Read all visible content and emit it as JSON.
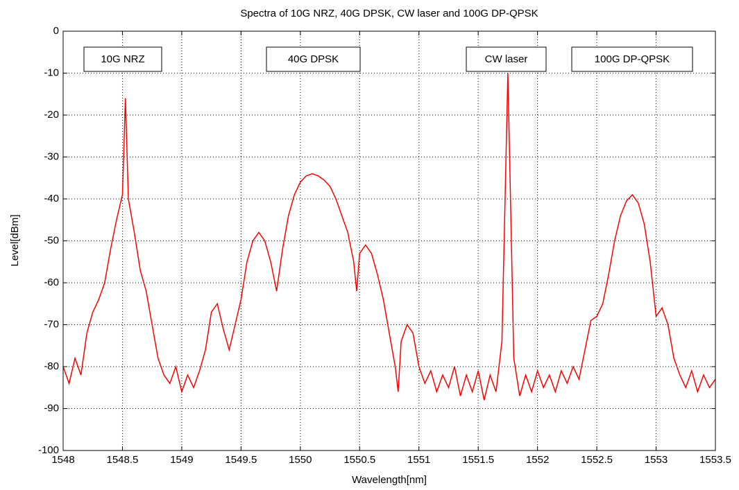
{
  "chart_data": {
    "type": "line",
    "title": "Spectra of 10G NRZ, 40G DPSK, CW laser and 100G DP-QPSK",
    "xlabel": "Wavelength[nm]",
    "ylabel": "Level[dBm]",
    "annotations": [
      "10G NRZ",
      "40G DPSK",
      "CW laser",
      "100G DP-QPSK"
    ],
    "color": "#ff0000",
    "grid": true,
    "xlim": [
      1548,
      1553.5
    ],
    "xticks": [
      1548,
      1548.5,
      1549,
      1549.5,
      1550,
      1550.5,
      1551,
      1551.5,
      1552,
      1552.5,
      1553,
      1553.5
    ],
    "ylim": [
      -100,
      0
    ],
    "yticks": [
      0,
      -10,
      -20,
      -30,
      -40,
      -50,
      -60,
      -70,
      -80,
      -90,
      -100
    ],
    "x": [
      1548,
      1548.05,
      1548.1,
      1548.15,
      1548.2,
      1548.25,
      1548.3,
      1548.35,
      1548.4,
      1548.45,
      1548.5,
      1548.525,
      1548.55,
      1548.6,
      1548.65,
      1548.7,
      1548.75,
      1548.8,
      1548.85,
      1548.9,
      1548.95,
      1549,
      1549.05,
      1549.1,
      1549.15,
      1549.2,
      1549.25,
      1549.3,
      1549.35,
      1549.4,
      1549.45,
      1549.5,
      1549.55,
      1549.6,
      1549.65,
      1549.7,
      1549.75,
      1549.8,
      1549.85,
      1549.9,
      1549.95,
      1550,
      1550.05,
      1550.1,
      1550.15,
      1550.2,
      1550.25,
      1550.3,
      1550.35,
      1550.4,
      1550.45,
      1550.475,
      1550.5,
      1550.55,
      1550.6,
      1550.65,
      1550.7,
      1550.75,
      1550.8,
      1550.825,
      1550.85,
      1550.9,
      1550.95,
      1551,
      1551.05,
      1551.1,
      1551.15,
      1551.2,
      1551.25,
      1551.3,
      1551.35,
      1551.4,
      1551.45,
      1551.5,
      1551.55,
      1551.6,
      1551.65,
      1551.7,
      1551.75,
      1551.8,
      1551.85,
      1551.9,
      1551.95,
      1552,
      1552.05,
      1552.1,
      1552.15,
      1552.2,
      1552.25,
      1552.3,
      1552.35,
      1552.4,
      1552.45,
      1552.5,
      1552.55,
      1552.6,
      1552.65,
      1552.7,
      1552.75,
      1552.8,
      1552.85,
      1552.9,
      1552.95,
      1553,
      1553.05,
      1553.1,
      1553.15,
      1553.2,
      1553.25,
      1553.3,
      1553.35,
      1553.4,
      1553.45,
      1553.5
    ],
    "values": [
      -80,
      -84,
      -78,
      -82,
      -72,
      -67,
      -64,
      -60,
      -52,
      -45,
      -39,
      -16,
      -40,
      -48,
      -57,
      -62,
      -70,
      -78,
      -82,
      -84,
      -80,
      -86,
      -82,
      -85,
      -81,
      -76,
      -67,
      -65,
      -71,
      -76,
      -70,
      -64,
      -55,
      -50,
      -48,
      -50,
      -55,
      -62,
      -52,
      -44,
      -39,
      -36,
      -34.5,
      -34,
      -34.5,
      -35.5,
      -37,
      -40,
      -44,
      -48,
      -55,
      -62,
      -53,
      -51,
      -53,
      -58,
      -64,
      -72,
      -80,
      -86,
      -74,
      -70,
      -72,
      -80,
      -84,
      -81,
      -86,
      -82,
      -85,
      -80,
      -87,
      -82,
      -86,
      -81,
      -88,
      -82,
      -86,
      -74,
      -10,
      -78,
      -87,
      -82,
      -86,
      -81,
      -85,
      -82,
      -86,
      -81,
      -84,
      -80,
      -83,
      -76,
      -69,
      -68,
      -65,
      -58,
      -50,
      -44,
      -40.5,
      -39,
      -41,
      -46,
      -55,
      -68,
      -66,
      -70,
      -78,
      -82,
      -85,
      -81,
      -86,
      -82,
      -85,
      -83
    ]
  }
}
